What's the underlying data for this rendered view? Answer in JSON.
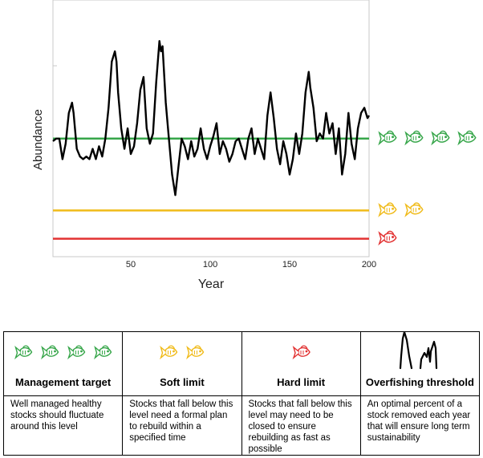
{
  "chart_data": {
    "type": "line",
    "xlabel": "Year",
    "ylabel": "Abundance",
    "x_ticks": [
      50,
      100,
      150,
      200
    ],
    "xlim": [
      1,
      200
    ],
    "ylim": [
      0,
      100
    ],
    "series": [
      {
        "name": "Abundance",
        "color": "#000000",
        "points": [
          [
            1,
            45
          ],
          [
            3,
            46
          ],
          [
            5,
            46
          ],
          [
            7,
            38
          ],
          [
            9,
            44
          ],
          [
            11,
            56
          ],
          [
            13,
            60
          ],
          [
            14,
            56
          ],
          [
            16,
            42
          ],
          [
            18,
            39
          ],
          [
            20,
            38
          ],
          [
            22,
            39
          ],
          [
            24,
            38
          ],
          [
            26,
            42
          ],
          [
            28,
            38
          ],
          [
            30,
            43
          ],
          [
            32,
            39
          ],
          [
            34,
            46
          ],
          [
            36,
            58
          ],
          [
            38,
            76
          ],
          [
            40,
            80
          ],
          [
            41,
            76
          ],
          [
            42,
            64
          ],
          [
            44,
            50
          ],
          [
            46,
            42
          ],
          [
            48,
            50
          ],
          [
            50,
            40
          ],
          [
            52,
            43
          ],
          [
            54,
            52
          ],
          [
            56,
            65
          ],
          [
            58,
            70
          ],
          [
            60,
            50
          ],
          [
            62,
            44
          ],
          [
            64,
            48
          ],
          [
            66,
            68
          ],
          [
            68,
            84
          ],
          [
            69,
            80
          ],
          [
            70,
            82
          ],
          [
            72,
            60
          ],
          [
            74,
            46
          ],
          [
            76,
            32
          ],
          [
            78,
            24
          ],
          [
            80,
            35
          ],
          [
            82,
            46
          ],
          [
            84,
            43
          ],
          [
            86,
            38
          ],
          [
            88,
            45
          ],
          [
            90,
            39
          ],
          [
            92,
            42
          ],
          [
            94,
            50
          ],
          [
            96,
            42
          ],
          [
            98,
            38
          ],
          [
            100,
            43
          ],
          [
            102,
            47
          ],
          [
            104,
            52
          ],
          [
            106,
            40
          ],
          [
            108,
            45
          ],
          [
            110,
            42
          ],
          [
            112,
            37
          ],
          [
            114,
            40
          ],
          [
            116,
            45
          ],
          [
            118,
            46
          ],
          [
            120,
            42
          ],
          [
            122,
            38
          ],
          [
            124,
            46
          ],
          [
            126,
            50
          ],
          [
            128,
            40
          ],
          [
            130,
            46
          ],
          [
            132,
            42
          ],
          [
            134,
            38
          ],
          [
            136,
            55
          ],
          [
            138,
            64
          ],
          [
            140,
            54
          ],
          [
            142,
            42
          ],
          [
            144,
            36
          ],
          [
            146,
            45
          ],
          [
            148,
            40
          ],
          [
            150,
            32
          ],
          [
            152,
            38
          ],
          [
            154,
            48
          ],
          [
            156,
            40
          ],
          [
            158,
            48
          ],
          [
            160,
            64
          ],
          [
            162,
            72
          ],
          [
            163,
            66
          ],
          [
            165,
            58
          ],
          [
            167,
            45
          ],
          [
            169,
            48
          ],
          [
            171,
            46
          ],
          [
            173,
            56
          ],
          [
            175,
            48
          ],
          [
            177,
            52
          ],
          [
            179,
            40
          ],
          [
            181,
            50
          ],
          [
            183,
            32
          ],
          [
            185,
            40
          ],
          [
            187,
            56
          ],
          [
            189,
            44
          ],
          [
            191,
            38
          ],
          [
            193,
            50
          ],
          [
            195,
            56
          ],
          [
            197,
            58
          ],
          [
            199,
            54
          ],
          [
            200,
            55
          ]
        ]
      }
    ],
    "thresholds": [
      {
        "name": "Management target",
        "value": 46,
        "color": "#37a64a",
        "fish_count": 4
      },
      {
        "name": "Soft limit",
        "value": 18,
        "color": "#f0bb1a",
        "fish_count": 2
      },
      {
        "name": "Hard limit",
        "value": 7,
        "color": "#e23232",
        "fish_count": 1
      }
    ]
  },
  "legend": [
    {
      "title": "Management target",
      "description": "Well managed healthy stocks should fluctuate around this level",
      "color": "#37a64a",
      "fish_count": 4
    },
    {
      "title": "Soft limit",
      "description": "Stocks that fall below this level need a formal plan to rebuild within a specified time",
      "color": "#f0bb1a",
      "fish_count": 2
    },
    {
      "title": "Hard limit",
      "description": "Stocks that fall below this level may need to be closed to ensure rebuilding as fast as possible",
      "color": "#e23232",
      "fish_count": 1
    },
    {
      "title": "Overfishing threshold",
      "description": "An optimal percent of a stock removed each year that will ensure long term sustainability",
      "color": "#000000",
      "fish_count": 0
    }
  ]
}
